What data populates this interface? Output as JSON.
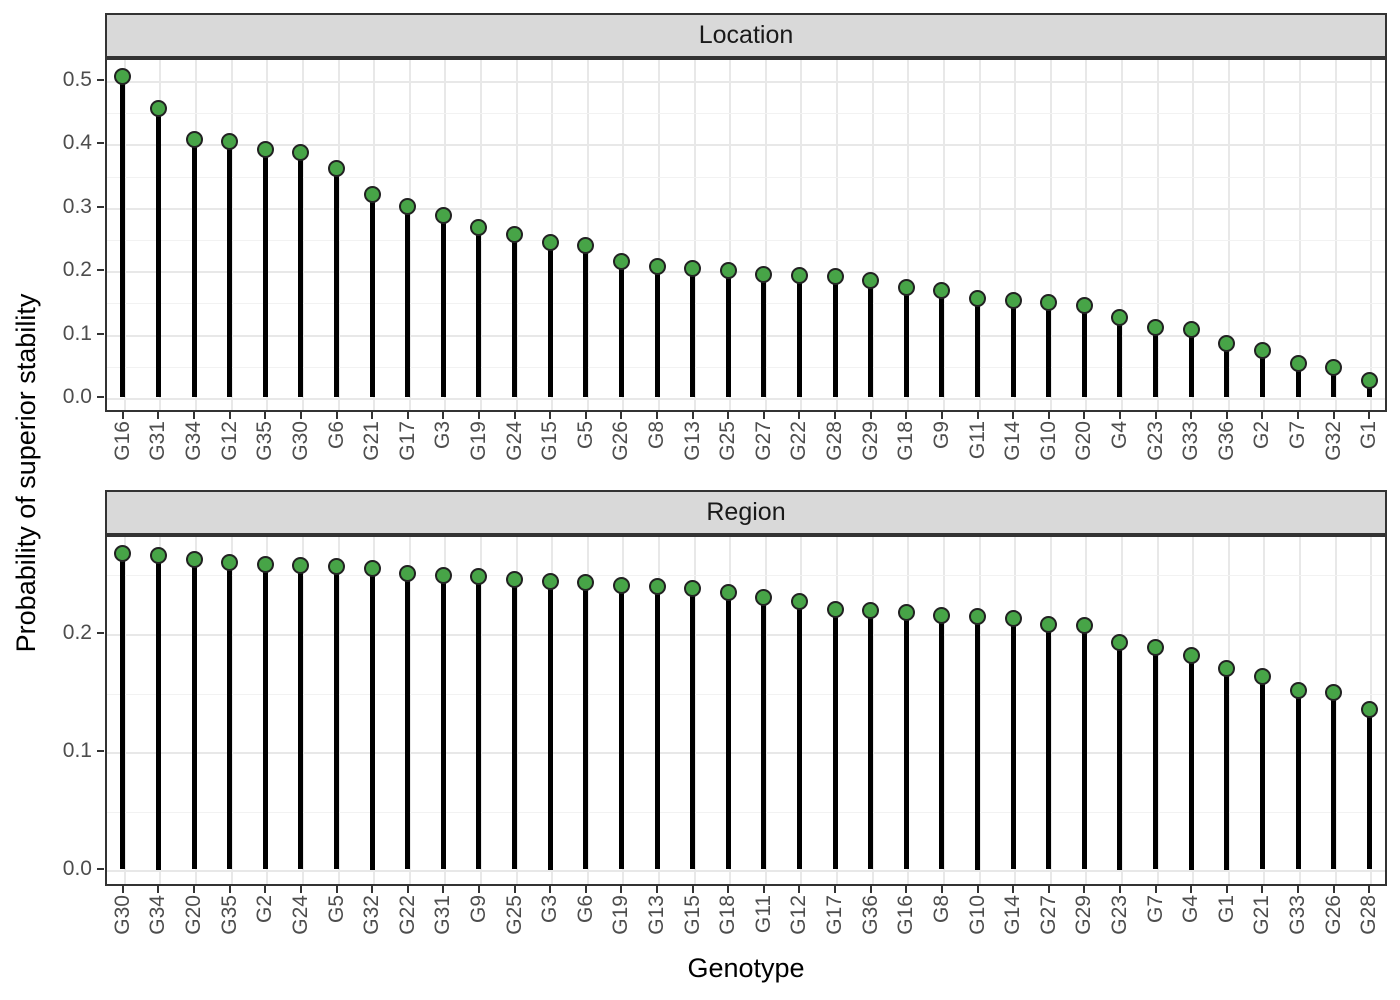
{
  "chart_data": {
    "type": "lollipop",
    "title": "",
    "xlabel": "Genotype",
    "ylabel": "Probability of superior stability",
    "legend": "none",
    "grid": true,
    "facets": [
      {
        "label": "Location",
        "categories": [
          "G16",
          "G31",
          "G34",
          "G12",
          "G35",
          "G30",
          "G6",
          "G21",
          "G17",
          "G3",
          "G19",
          "G24",
          "G15",
          "G5",
          "G26",
          "G8",
          "G13",
          "G25",
          "G27",
          "G22",
          "G28",
          "G29",
          "G18",
          "G9",
          "G11",
          "G14",
          "G10",
          "G20",
          "G4",
          "G23",
          "G33",
          "G36",
          "G2",
          "G7",
          "G32",
          "G1"
        ],
        "values": [
          0.505,
          0.455,
          0.407,
          0.403,
          0.39,
          0.386,
          0.36,
          0.32,
          0.301,
          0.286,
          0.267,
          0.257,
          0.243,
          0.239,
          0.214,
          0.206,
          0.202,
          0.2,
          0.194,
          0.192,
          0.19,
          0.184,
          0.173,
          0.168,
          0.155,
          0.152,
          0.149,
          0.145,
          0.125,
          0.11,
          0.107,
          0.084,
          0.074,
          0.053,
          0.047,
          0.026
        ],
        "yticks": [
          0.0,
          0.1,
          0.2,
          0.3,
          0.4,
          0.5
        ],
        "ytick_labels": [
          "0.0",
          "0.1",
          "0.2",
          "0.3",
          "0.4",
          "0.5"
        ],
        "ylim": [
          -0.0237,
          0.5347
        ],
        "minor_step": 0.05
      },
      {
        "label": "Region",
        "categories": [
          "G30",
          "G34",
          "G20",
          "G35",
          "G2",
          "G24",
          "G5",
          "G32",
          "G22",
          "G31",
          "G9",
          "G25",
          "G3",
          "G6",
          "G19",
          "G13",
          "G15",
          "G18",
          "G11",
          "G12",
          "G17",
          "G36",
          "G16",
          "G8",
          "G10",
          "G14",
          "G27",
          "G29",
          "G23",
          "G7",
          "G4",
          "G1",
          "G21",
          "G33",
          "G26",
          "G28"
        ],
        "values": [
          0.267,
          0.266,
          0.262,
          0.26,
          0.258,
          0.257,
          0.256,
          0.255,
          0.25,
          0.249,
          0.248,
          0.245,
          0.244,
          0.243,
          0.24,
          0.239,
          0.238,
          0.234,
          0.23,
          0.227,
          0.22,
          0.219,
          0.217,
          0.215,
          0.214,
          0.212,
          0.207,
          0.206,
          0.192,
          0.188,
          0.181,
          0.17,
          0.163,
          0.151,
          0.15,
          0.135
        ],
        "yticks": [
          0.0,
          0.1,
          0.2
        ],
        "ytick_labels": [
          "0.0",
          "0.1",
          "0.2"
        ],
        "ylim": [
          -0.014,
          0.2829
        ],
        "minor_step": 0.05
      }
    ],
    "colors": {
      "dot_fill": "#47a447",
      "dot_stroke": "#222222",
      "stem": "#000000",
      "strip_bg": "#d9d9d9",
      "strip_border": "#333333",
      "panel_border": "#333333",
      "grid_major": "#e8e8e8",
      "grid_minor": "#f2f2f2",
      "tick_label": "#4d4d4d",
      "axis_title": "#000000"
    }
  }
}
